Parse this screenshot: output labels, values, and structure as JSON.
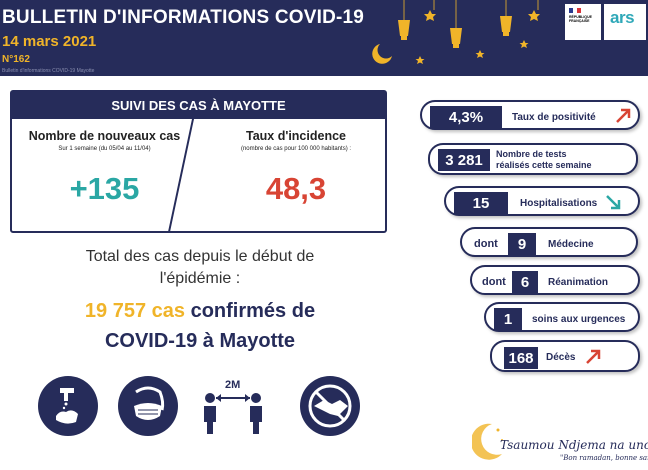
{
  "header": {
    "title": "BULLETIN D'INFORMATIONS COVID-19",
    "date": "14 mars 2021",
    "number": "N°162",
    "small_text": "Bulletin d'informations COVID-19 Mayotte"
  },
  "logos": {
    "rf_text": "RÉPUBLIQUE FRANÇAISE",
    "ars": "ars"
  },
  "suivi": {
    "title": "SUIVI DES CAS À MAYOTTE",
    "new_cases_label": "Nombre de nouveaux cas",
    "new_cases_sub": "Sur 1 semaine (du 05/04 au 11/04)",
    "new_cases_value": "+135",
    "incidence_label": "Taux d'incidence",
    "incidence_sub": "(nombre de cas pour 100 000 habitants) :",
    "incidence_value": "48,3"
  },
  "total": {
    "line1": "Total des cas depuis le début de",
    "line2": "l'épidémie :",
    "cases": "19 757 cas",
    "confirmed": "confirmés de",
    "place": "COVID-19 à Mayotte"
  },
  "icons": [
    "hand-washing-icon",
    "face-mask-icon",
    "distance-2m-icon",
    "no-handshake-icon"
  ],
  "distance_label": "2M",
  "indicators": {
    "positivity": {
      "value": "4,3%",
      "label": "Taux de positivité"
    },
    "tests": {
      "value": "3 281",
      "label1": "Nombre de tests",
      "label2": "réalisés cette semaine"
    },
    "hospital": {
      "value": "15",
      "label": "Hospitalisations"
    },
    "medicine": {
      "prefix": "dont",
      "value": "9",
      "label": "Médecine"
    },
    "reanimation": {
      "prefix": "dont",
      "value": "6",
      "label": "Réanimation"
    },
    "urgences": {
      "value": "1",
      "label": "soins aux urgences"
    },
    "deces": {
      "value": "168",
      "label": "Décès"
    }
  },
  "slogan": "Tsaumou Ndjema na unono !",
  "slogan_sub": "\"Bon ramadan, bonne santé\"",
  "colors": {
    "navy": "#262c5a",
    "gold": "#f0b429",
    "teal": "#2aa7a4",
    "red": "#d84434"
  }
}
